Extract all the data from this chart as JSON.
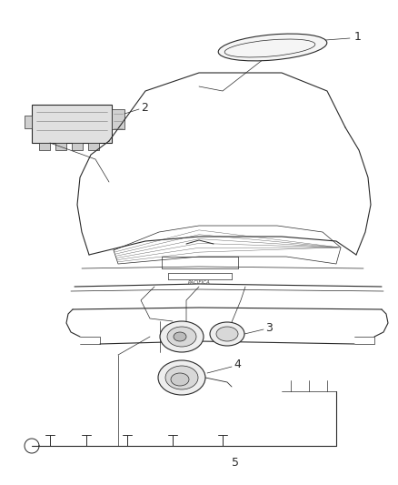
{
  "background_color": "#ffffff",
  "line_color": "#2a2a2a",
  "label_color": "#2a2a2a",
  "fig_width": 4.38,
  "fig_height": 5.33,
  "dpi": 100
}
